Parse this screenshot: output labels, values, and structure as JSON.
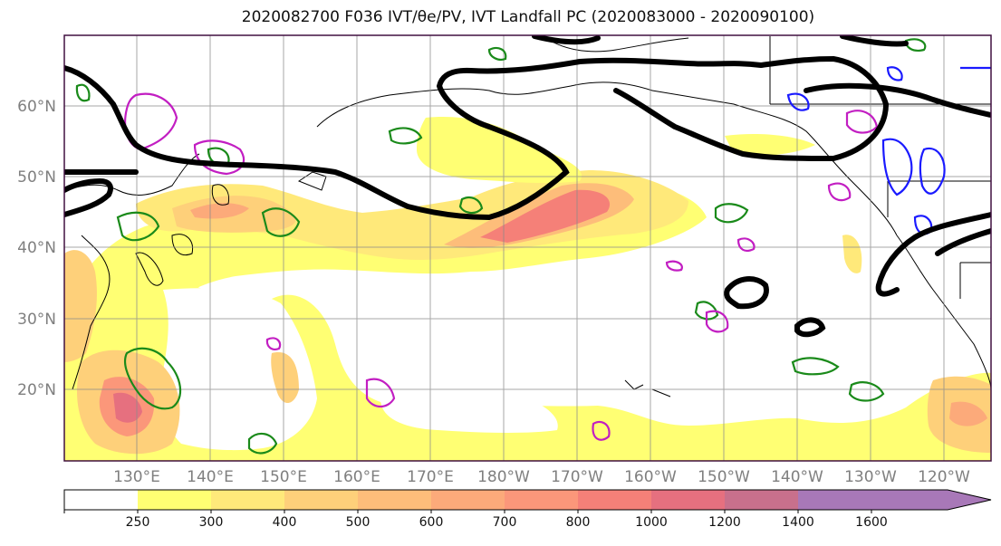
{
  "title": "2020082700 F036 IVT/θe/PV, IVT Landfall PC (2020083000 - 2020090100)",
  "lat_labels": [
    "60°N",
    "50°N",
    "40°N",
    "30°N",
    "20°N"
  ],
  "lon_labels": [
    "130°E",
    "140°E",
    "150°E",
    "160°E",
    "170°E",
    "180°W",
    "170°W",
    "160°W",
    "150°W",
    "140°W",
    "130°W",
    "120°W"
  ],
  "colorbar": {
    "ticks": [
      "250",
      "300",
      "400",
      "500",
      "600",
      "700",
      "800",
      "1000",
      "1200",
      "1400",
      "1600"
    ],
    "colors": [
      "#ffffff",
      "#ffff73",
      "#ffe97a",
      "#fed07a",
      "#fdbd7a",
      "#fcaa7a",
      "#fb977a",
      "#f58078",
      "#e6707f",
      "#c8708c",
      "#a878b8"
    ]
  },
  "colors": {
    "thick_contour": "#000000",
    "green_contour": "#1a8a1a",
    "blue_contour": "#1a1aff",
    "magenta_contour": "#c21ec2"
  }
}
